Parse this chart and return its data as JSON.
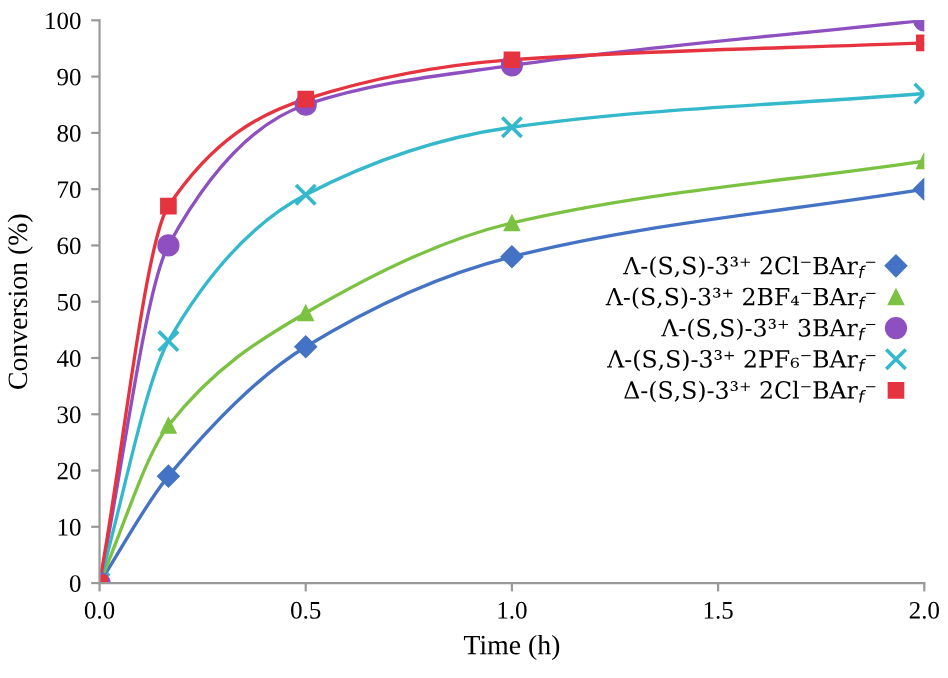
{
  "chart_data": {
    "type": "line",
    "xlabel": "Time (h)",
    "ylabel": "Conversion (%)",
    "x": [
      0,
      0.167,
      0.5,
      1,
      2
    ],
    "series": [
      {
        "name": "Λ-(S,S)-3³⁺ 2Cl⁻BAr$_{f}$⁻",
        "color": "#4472c4",
        "marker": "diamond",
        "values": [
          0,
          19,
          42,
          58,
          70
        ]
      },
      {
        "name": "Λ-(S,S)-3³⁺ 2BF₄⁻BAr$_{f}$⁻",
        "color": "#7cc242",
        "marker": "triangle",
        "values": [
          0,
          28,
          48,
          64,
          75
        ]
      },
      {
        "name": "Λ-(S,S)-3³⁺ 3BAr$_{f}$⁻",
        "color": "#8e4fc0",
        "marker": "circle",
        "values": [
          0,
          60,
          85,
          92,
          100
        ]
      },
      {
        "name": "Λ-(S,S)-3³⁺ 2PF₆⁻BAr$_{f}$⁻",
        "color": "#33b8cc",
        "marker": "cross",
        "values": [
          0,
          43,
          69,
          81,
          87
        ]
      },
      {
        "name": "Δ-(S,S)-3³⁺ 2Cl⁻BAr$_{f}$⁻",
        "color": "#e63340",
        "marker": "square",
        "values": [
          0,
          67,
          86,
          93,
          96
        ]
      }
    ],
    "xlim": [
      0,
      2
    ],
    "xticks": [
      {
        "value": 0,
        "label": "0.0"
      },
      0.5,
      {
        "value": 1,
        "label": "1.0"
      },
      1.5,
      {
        "value": 2,
        "label": "2.0"
      }
    ],
    "ylim": [
      0,
      100
    ],
    "yticks": [
      0,
      10,
      20,
      30,
      40,
      50,
      60,
      70,
      80,
      90,
      100
    ],
    "grid": false,
    "legend": "right",
    "line_style": "solid"
  }
}
